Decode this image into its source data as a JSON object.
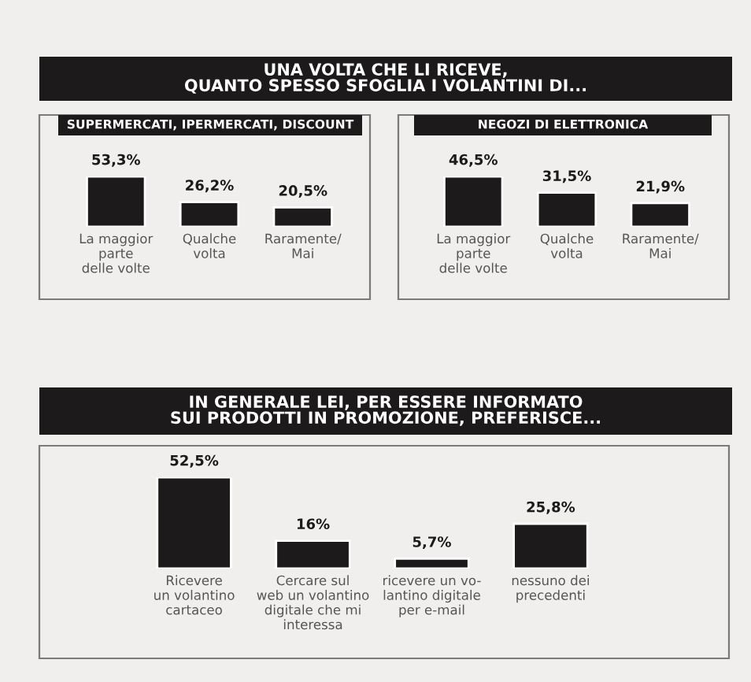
{
  "chart_data": [
    {
      "type": "bar",
      "title": "UNA VOLTA CHE LI RICEVE,\nQUANTO SPESSO SFOGLIA I VOLANTINI DI...",
      "subtitle": "SUPERMERCATI, IPERMERCATI, DISCOUNT",
      "categories": [
        "La maggior\nparte\ndelle volte",
        "Qualche\nvolta",
        "Raramente/\nMai"
      ],
      "values": [
        53.3,
        26.2,
        20.5
      ],
      "value_labels": [
        "53,3%",
        "26,2%",
        "20,5%"
      ],
      "color": "#1c1a1a",
      "grid": false,
      "legend": false
    },
    {
      "type": "bar",
      "subtitle": "NEGOZI DI ELETTRONICA",
      "categories": [
        "La maggior\nparte\ndelle volte",
        "Qualche\nvolta",
        "Raramente/\nMai"
      ],
      "values": [
        46.5,
        31.5,
        21.9
      ],
      "value_labels": [
        "46,5%",
        "31,5%",
        "21,9%"
      ],
      "color": "#1c1a1a",
      "grid": false,
      "legend": false
    },
    {
      "type": "bar",
      "title": "IN GENERALE LEI, PER ESSERE INFORMATO\nSUI PRODOTTI IN PROMOZIONE, PREFERISCE...",
      "categories": [
        "Ricevere\nun volantino\ncartaceo",
        "Cercare sul\nweb un volantino\ndigitale che mi\ninteressa",
        "ricevere un vo-\nlantino digitale\nper e-mail",
        "nessuno dei\nprecedenti"
      ],
      "values": [
        52.5,
        16,
        5.7,
        25.8
      ],
      "value_labels": [
        "52,5%",
        "16%",
        "5,7%",
        "25,8%"
      ],
      "color": "#1c1a1a",
      "grid": false,
      "legend": false
    }
  ]
}
